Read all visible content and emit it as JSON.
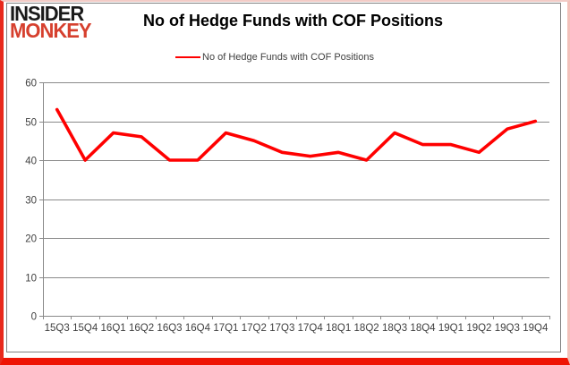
{
  "branding": {
    "line1": "INSIDER",
    "line2": "MONKEY",
    "line1_color": "#1a1a1a",
    "line2_color": "#d6402e"
  },
  "header": {
    "title": "No of Hedge Funds with COF Positions"
  },
  "legend": {
    "label": "No of Hedge Funds with COF Positions",
    "swatch_color": "#ff0000"
  },
  "chart_data": {
    "type": "line",
    "title": "No of Hedge Funds with COF Positions",
    "series_name": "No of Hedge Funds with COF Positions",
    "categories": [
      "15Q3",
      "15Q4",
      "16Q1",
      "16Q2",
      "16Q3",
      "16Q4",
      "17Q1",
      "17Q2",
      "17Q3",
      "17Q4",
      "18Q1",
      "18Q2",
      "18Q3",
      "18Q4",
      "19Q1",
      "19Q2",
      "19Q3",
      "19Q4"
    ],
    "values": [
      53,
      40,
      47,
      46,
      40,
      40,
      47,
      45,
      42,
      41,
      42,
      40,
      47,
      44,
      44,
      42,
      48,
      50
    ],
    "xlabel": "",
    "ylabel": "",
    "ylim": [
      0,
      60
    ],
    "yticks": [
      0,
      10,
      20,
      30,
      40,
      50,
      60
    ],
    "grid": true,
    "legend_position": "top",
    "line_color": "#ff0000",
    "line_width": 3.6,
    "gridline_color": "#8a8a8a",
    "axis_text_color": "#3f3f3f"
  }
}
